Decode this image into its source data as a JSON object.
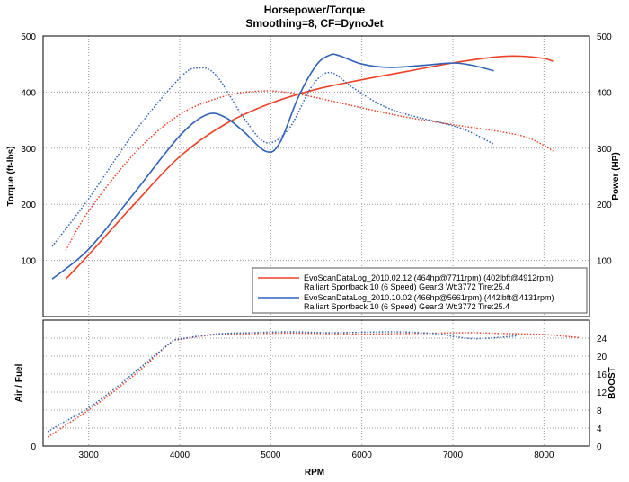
{
  "colors": {
    "red": "#ee4026",
    "blue": "#2f62b8"
  },
  "chart_data": [
    {
      "type": "line",
      "title": "Horsepower/Torque",
      "subtitle": "Smoothing=8, CF=DynoJet",
      "ylabel": "Torque (ft-lbs)",
      "y2label": "Power (HP)",
      "xlim": [
        2500,
        8500
      ],
      "ylim": [
        0,
        500
      ],
      "y2lim": [
        0,
        500
      ],
      "xticks": [
        3000,
        4000,
        5000,
        6000,
        7000,
        8000
      ],
      "yticks": [
        100,
        200,
        300,
        400,
        500
      ],
      "y2ticks": [
        100,
        200,
        300,
        400,
        500
      ],
      "grid": true,
      "legend": {
        "placement": "bottom-right",
        "entries": [
          {
            "label": "EvoScanDataLog_2010.02.12 (464hp@7711rpm) (402lbft@4912rpm)",
            "sub": "Ralliart Sportback 10 (6 Speed) Gear:3 Wt:3772 Tire:25.4",
            "color": "#ee4026"
          },
          {
            "label": "EvoScanDataLog_2010.10.02 (466hp@5661rpm) (442lbft@4131rpm)",
            "sub": "Ralliart Sportback 10 (6 Speed) Gear:3 Wt:3772 Tire:25.4",
            "color": "#2f62b8"
          }
        ]
      },
      "series": [
        {
          "name": "EvoScanDataLog_2010.02.12 power",
          "color": "#ee4026",
          "style": "solid",
          "x": [
            2750,
            3000,
            3500,
            4000,
            4500,
            5000,
            5500,
            6000,
            6500,
            7000,
            7500,
            7750,
            8000,
            8100
          ],
          "y": [
            67,
            110,
            200,
            285,
            343,
            380,
            405,
            422,
            437,
            452,
            463,
            464,
            460,
            455
          ]
        },
        {
          "name": "EvoScanDataLog_2010.02.12 torque",
          "color": "#ee4026",
          "style": "dotted",
          "x": [
            2750,
            3000,
            3500,
            4000,
            4500,
            4900,
            5200,
            5500,
            6000,
            6500,
            7000,
            7500,
            7800,
            8000,
            8100
          ],
          "y": [
            118,
            188,
            290,
            360,
            393,
            402,
            399,
            390,
            372,
            355,
            342,
            330,
            320,
            305,
            295
          ]
        },
        {
          "name": "EvoScanDataLog_2010.10.02 power",
          "color": "#2f62b8",
          "style": "solid",
          "x": [
            2600,
            3000,
            3500,
            4000,
            4300,
            4500,
            4700,
            4950,
            5100,
            5300,
            5500,
            5650,
            5750,
            6000,
            6300,
            6700,
            7000,
            7200,
            7450
          ],
          "y": [
            67,
            120,
            220,
            322,
            360,
            355,
            330,
            294,
            310,
            390,
            448,
            466,
            465,
            450,
            444,
            448,
            452,
            448,
            438
          ]
        },
        {
          "name": "EvoScanDataLog_2010.10.02 torque",
          "color": "#2f62b8",
          "style": "dotted",
          "x": [
            2600,
            3000,
            3500,
            4000,
            4200,
            4400,
            4700,
            4950,
            5200,
            5450,
            5650,
            5900,
            6200,
            6500,
            7000,
            7200,
            7450
          ],
          "y": [
            125,
            210,
            328,
            425,
            443,
            430,
            355,
            310,
            335,
            410,
            435,
            408,
            378,
            360,
            340,
            328,
            307
          ]
        }
      ]
    },
    {
      "type": "line",
      "xlabel": "RPM",
      "ylabel": "Air / Fuel",
      "y2label": "BOOST",
      "xlim": [
        2500,
        8500
      ],
      "ylim": [
        0,
        28
      ],
      "y2lim": [
        0,
        28
      ],
      "xticks": [
        3000,
        4000,
        5000,
        6000,
        7000,
        8000
      ],
      "yticks": [
        0
      ],
      "y2ticks": [
        0,
        4,
        8,
        12,
        16,
        20,
        24
      ],
      "grid": true,
      "series": [
        {
          "name": "EvoScanDataLog_2010.02.12 boost",
          "color": "#ee4026",
          "style": "dotted",
          "x": [
            2550,
            2700,
            3000,
            3300,
            3600,
            3900,
            4000,
            4400,
            4800,
            5200,
            5600,
            6000,
            6400,
            6800,
            7200,
            7600,
            8000,
            8400
          ],
          "y": [
            2,
            4,
            8,
            12.5,
            17.5,
            23,
            23.7,
            24.8,
            25,
            25.1,
            25,
            24.9,
            25,
            25.1,
            25.2,
            25,
            24.8,
            24.1
          ]
        },
        {
          "name": "EvoScanDataLog_2010.10.02 boost",
          "color": "#2f62b8",
          "style": "dotted",
          "x": [
            2550,
            2700,
            3000,
            3300,
            3600,
            3900,
            4000,
            4400,
            4800,
            5200,
            5600,
            6000,
            6400,
            6800,
            7000,
            7200,
            7400,
            7700
          ],
          "y": [
            3.2,
            5,
            8.5,
            13,
            18,
            23,
            23.8,
            24.9,
            25.2,
            25.4,
            25.2,
            25.3,
            25.4,
            25,
            24.4,
            23.9,
            24,
            24.5
          ]
        }
      ]
    }
  ]
}
